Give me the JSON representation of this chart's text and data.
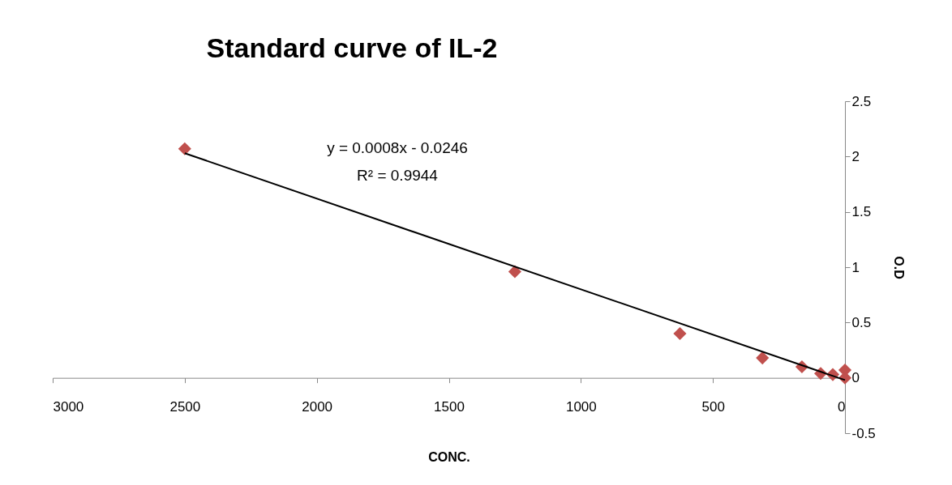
{
  "chart_data": {
    "type": "scatter",
    "title": "Standard curve of IL-2",
    "xlabel": "CONC.",
    "ylabel": "O.D",
    "xlim": [
      3000,
      0
    ],
    "xticks": [
      3000,
      2500,
      2000,
      1500,
      1000,
      500,
      0
    ],
    "ylim": [
      -0.5,
      2.5
    ],
    "yticks": [
      -0.5,
      0,
      0.5,
      1,
      1.5,
      2,
      2.5
    ],
    "grid": false,
    "marker": "diamond",
    "annotations": [
      "y = 0.0008x - 0.0246",
      "R² = 0.9944"
    ],
    "series": [
      {
        "color": "#c0504d",
        "x": [
          2500,
          1250,
          625,
          312.5,
          163,
          92,
          46,
          0,
          0
        ],
        "values": [
          2.07,
          0.96,
          0.4,
          0.18,
          0.1,
          0.04,
          0.03,
          0.07,
          0.0
        ]
      },
      {
        "type": "line",
        "color": "#000000",
        "marker": "none",
        "line_style": "solid",
        "x": [
          2500,
          0
        ],
        "values": [
          2.03,
          -0.02
        ]
      }
    ]
  }
}
